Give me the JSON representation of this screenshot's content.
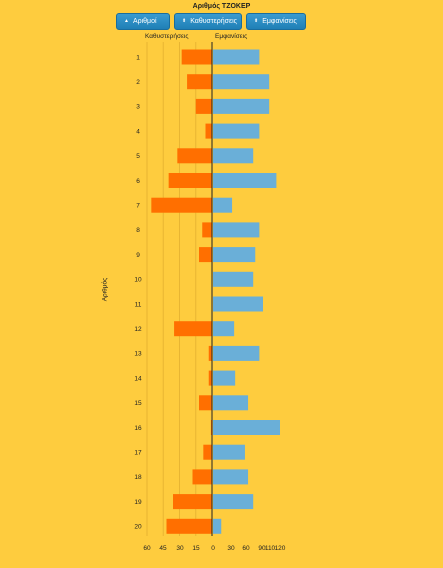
{
  "title": "Αριθμός ΤΖΟΚΕΡ",
  "buttons": [
    {
      "label": "Αριθμοί",
      "icon": "sort-up-icon",
      "arrow": "▲"
    },
    {
      "label": "Καθυστερήσεις",
      "icon": "sort-both-icon",
      "arrow": "⬍"
    },
    {
      "label": "Εμφανίσεις",
      "icon": "sort-both-icon",
      "arrow": "⬍"
    }
  ],
  "colors": {
    "background": "#FECC3E",
    "delays": "#FF6F00",
    "appearances": "#6AAFD8",
    "axis": "#222222",
    "gridline": "#E8B532"
  },
  "chart_data": {
    "type": "bar",
    "orientation": "horizontal-diverging",
    "title": "Αριθμός ΤΖΟΚΕΡ",
    "ylabel": "Αριθμός",
    "categories": [
      "1",
      "2",
      "3",
      "4",
      "5",
      "6",
      "7",
      "8",
      "9",
      "10",
      "11",
      "12",
      "13",
      "14",
      "15",
      "16",
      "17",
      "18",
      "19",
      "20"
    ],
    "series": [
      {
        "name": "Καθυστερήσεις",
        "values": [
          28,
          23,
          15,
          6,
          32,
          40,
          56,
          9,
          12,
          0,
          0,
          35,
          3,
          3,
          12,
          1,
          8,
          18,
          36,
          42
        ]
      },
      {
        "name": "Εμφανίσεις",
        "values": [
          90,
          109,
          109,
          90,
          78,
          123,
          37,
          90,
          82,
          78,
          97,
          41,
          90,
          43,
          68,
          130,
          62,
          68,
          78,
          16
        ]
      }
    ],
    "left_ticks": [
      "60",
      "45",
      "30",
      "15",
      "0"
    ],
    "right_ticks": [
      "30",
      "60",
      "90",
      "110",
      "120"
    ],
    "left_xlim": [
      0,
      60
    ],
    "right_xlim": [
      0,
      130
    ],
    "grid": true
  }
}
